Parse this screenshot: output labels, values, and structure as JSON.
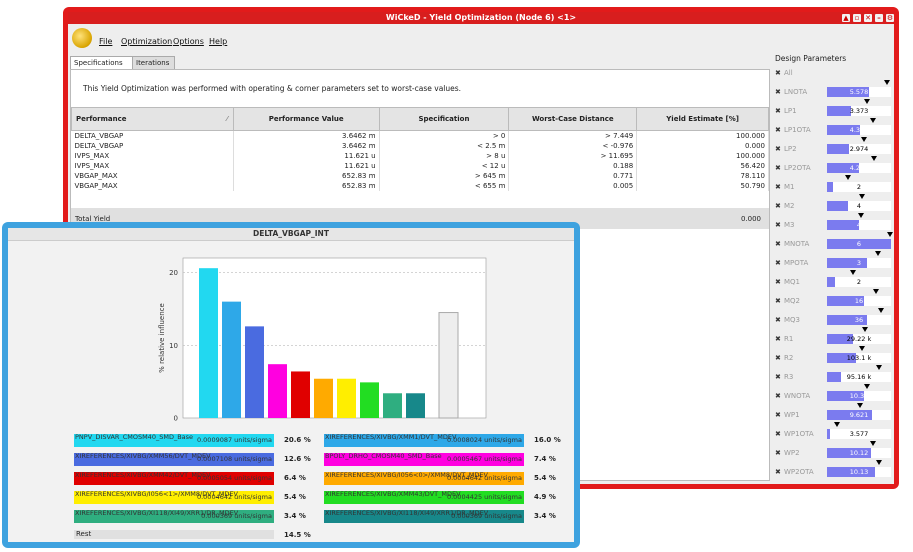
{
  "window": {
    "title": "WiCkeD - Yield Optimization (Node 6) <1>",
    "menu": [
      "File",
      "Optimization",
      "Options",
      "Help"
    ],
    "tabs": [
      "Specifications",
      "Iterations"
    ],
    "info": "This Yield Optimization was performed with operating & corner parameters set to worst-case values.",
    "table": {
      "headers": [
        "Performance",
        "Performance Value",
        "Specification",
        "Worst-Case Distance",
        "Yield Estimate [%]"
      ],
      "rows": [
        [
          "DELTA_VBGAP",
          "3.6462 m",
          "> 0",
          ">  7.449",
          "100.000"
        ],
        [
          "DELTA_VBGAP",
          "3.6462 m",
          "< 2.5 m",
          "<  -0.976",
          "0.000"
        ],
        [
          "IVPS_MAX",
          "11.621 u",
          "> 8 u",
          ">  11.695",
          "100.000"
        ],
        [
          "IVPS_MAX",
          "11.621 u",
          "< 12 u",
          "0.188",
          "56.420"
        ],
        [
          "VBGAP_MAX",
          "652.83 m",
          "> 645 m",
          "0.771",
          "78.110"
        ],
        [
          "VBGAP_MAX",
          "652.83 m",
          "< 655 m",
          "0.005",
          "50.790"
        ]
      ],
      "total_label": "Total Yield",
      "total_value": "0.000"
    }
  },
  "design_parameters": {
    "title": "Design Parameters",
    "all_label": "All",
    "items": [
      {
        "name": "LNOTA",
        "value": "5.578",
        "fill": 0.66,
        "marker": 0.93
      },
      {
        "name": "LP1",
        "value": "3.373",
        "fill": 0.38,
        "marker": 0.62
      },
      {
        "name": "LP1OTA",
        "value": "4.357",
        "fill": 0.52,
        "marker": 0.72
      },
      {
        "name": "LP2",
        "value": "2.974",
        "fill": 0.34,
        "marker": 0.58
      },
      {
        "name": "LP2OTA",
        "value": "4.223",
        "fill": 0.5,
        "marker": 0.74
      },
      {
        "name": "M1",
        "value": "2",
        "fill": 0.1,
        "marker": 0.33
      },
      {
        "name": "M2",
        "value": "4",
        "fill": 0.33,
        "marker": 0.55
      },
      {
        "name": "M3",
        "value": "4",
        "fill": 0.5,
        "marker": 0.53
      },
      {
        "name": "MNOTA",
        "value": "6",
        "fill": 1.0,
        "marker": 0.98
      },
      {
        "name": "MPOTA",
        "value": "3",
        "fill": 0.62,
        "marker": 0.8
      },
      {
        "name": "MQ1",
        "value": "2",
        "fill": 0.12,
        "marker": 0.4
      },
      {
        "name": "MQ2",
        "value": "16",
        "fill": 0.58,
        "marker": 0.76
      },
      {
        "name": "MQ3",
        "value": "36",
        "fill": 0.62,
        "marker": 0.85
      },
      {
        "name": "R1",
        "value": "29.22 k",
        "fill": 0.4,
        "marker": 0.6
      },
      {
        "name": "R2",
        "value": "103.1 k",
        "fill": 0.45,
        "marker": 0.55
      },
      {
        "name": "R3",
        "value": "95.16 k",
        "fill": 0.22,
        "marker": 0.82
      },
      {
        "name": "WNOTA",
        "value": "10.37",
        "fill": 0.58,
        "marker": 0.62
      },
      {
        "name": "WP1",
        "value": "9.621",
        "fill": 0.7,
        "marker": 0.52
      },
      {
        "name": "WP1OTA",
        "value": "3.577",
        "fill": 0.05,
        "marker": 0.15
      },
      {
        "name": "WP2",
        "value": "10.12",
        "fill": 0.68,
        "marker": 0.72
      },
      {
        "name": "WP2OTA",
        "value": "10.13",
        "fill": 0.75,
        "marker": 0.82
      }
    ]
  },
  "chart_window": {
    "title": "DELTA_VBGAP_INT",
    "rest_label": "Rest",
    "rest_pct": "14.5 %"
  },
  "chart_data": {
    "type": "bar",
    "title": "DELTA_VBGAP_INT",
    "xlabel": "",
    "ylabel": "% relative influence",
    "ylim": [
      0,
      22
    ],
    "yticks": [
      0,
      10,
      20
    ],
    "grid": true,
    "values": [
      20.6,
      16.0,
      12.6,
      7.4,
      6.4,
      5.4,
      5.4,
      4.9,
      3.4,
      3.4,
      14.5
    ],
    "colors": [
      "#22d8f0",
      "#2ea8e8",
      "#4a6be0",
      "#ff00e0",
      "#e00000",
      "#ffaa00",
      "#ffee00",
      "#22dd22",
      "#2fae80",
      "#17888a",
      "#eeeeee"
    ],
    "legend": [
      {
        "name": "PNPV_DISVAR_CMOSM40_SMD_Base",
        "value": "0.0009087 units/sigma",
        "pct": "20.6 %",
        "color": "#22d8f0"
      },
      {
        "name": "XIREFERENCES/XIVBG/XMM1/DVT_MDEV",
        "value": "0.0008024 units/sigma",
        "pct": "16.0 %",
        "color": "#2ea8e8"
      },
      {
        "name": "XIREFERENCES/XIVBG/XMM56/DVT_MDEV",
        "value": "0.0007108 units/sigma",
        "pct": "12.6 %",
        "color": "#4a6be0"
      },
      {
        "name": "BPOLY_DRHO_CMOSM40_SMD_Base",
        "value": "0.0005467 units/sigma",
        "pct": "7.4 %",
        "color": "#ff00e0"
      },
      {
        "name": "XIREFERENCES/XIVBG/XMM42/DVT_MDEV",
        "value": "0.0005054 units/sigma",
        "pct": "6.4 %",
        "color": "#e00000"
      },
      {
        "name": "XIREFERENCES/XIVBG/I056<0>/XMM8/DVT_MDEV",
        "value": "0.0004642 units/sigma",
        "pct": "5.4 %",
        "color": "#ffaa00"
      },
      {
        "name": "XIREFERENCES/XIVBG/I056<1>/XMM8/DVT_MDEV",
        "value": "0.0004642 units/sigma",
        "pct": "5.4 %",
        "color": "#ffee00"
      },
      {
        "name": "XIREFERENCES/XIVBG/XMM43/DVT_MDEV",
        "value": "0.0004425 units/sigma",
        "pct": "4.9 %",
        "color": "#22dd22"
      },
      {
        "name": "XIREFERENCES/XIVBG/XI118/XI49/XRR1/DR_MDEV",
        "value": "0.000369 units/sigma",
        "pct": "3.4 %",
        "color": "#2fae80"
      },
      {
        "name": "XIREFERENCES/XIVBG/XI118/XI49/XRR1/DR_MDEV",
        "value": "0.000369 units/sigma",
        "pct": "3.4 %",
        "color": "#17888a"
      }
    ]
  }
}
